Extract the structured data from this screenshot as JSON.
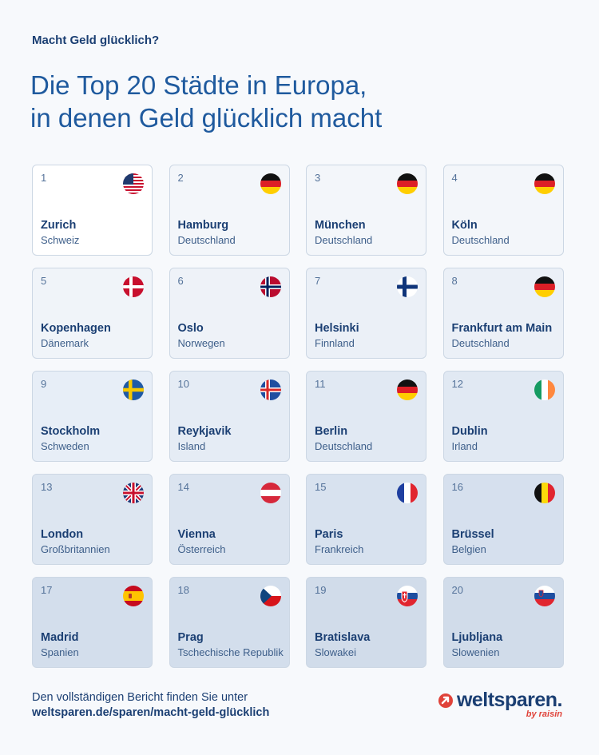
{
  "header": {
    "kicker": "Macht Geld glücklich?",
    "title_line1": "Die Top 20 Städte in Europa,",
    "title_line2": "in denen Geld glücklich macht"
  },
  "cities": [
    {
      "rank": "1",
      "city": "Zurich",
      "country": "Schweiz",
      "flag": "us-flag-icon",
      "bg": "#ffffff"
    },
    {
      "rank": "2",
      "city": "Hamburg",
      "country": "Deutschland",
      "flag": "germany-flag-icon",
      "bg": "#f3f6fa"
    },
    {
      "rank": "3",
      "city": "München",
      "country": "Deutschland",
      "flag": "germany-flag-icon",
      "bg": "#f3f6fa"
    },
    {
      "rank": "4",
      "city": "Köln",
      "country": "Deutschland",
      "flag": "germany-flag-icon",
      "bg": "#f3f6fa"
    },
    {
      "rank": "5",
      "city": "Kopenhagen",
      "country": "Dänemark",
      "flag": "denmark-flag-icon",
      "bg": "#f0f4f9"
    },
    {
      "rank": "6",
      "city": "Oslo",
      "country": "Norwegen",
      "flag": "norway-flag-icon",
      "bg": "#eef2f8"
    },
    {
      "rank": "7",
      "city": "Helsinki",
      "country": "Finnland",
      "flag": "finland-flag-icon",
      "bg": "#ebf0f7"
    },
    {
      "rank": "8",
      "city": "Frankfurt am Main",
      "country": "Deutschland",
      "flag": "germany-flag-icon",
      "bg": "#ebf0f7"
    },
    {
      "rank": "9",
      "city": "Stockholm",
      "country": "Schweden",
      "flag": "sweden-flag-icon",
      "bg": "#e7eef7"
    },
    {
      "rank": "10",
      "city": "Reykjavik",
      "country": "Island",
      "flag": "iceland-flag-icon",
      "bg": "#e5ecf5"
    },
    {
      "rank": "11",
      "city": "Berlin",
      "country": "Deutschland",
      "flag": "germany-flag-icon",
      "bg": "#e1e9f3"
    },
    {
      "rank": "12",
      "city": "Dublin",
      "country": "Irland",
      "flag": "ireland-flag-icon",
      "bg": "#e1e9f3"
    },
    {
      "rank": "13",
      "city": "London",
      "country": "Großbritannien",
      "flag": "uk-flag-icon",
      "bg": "#dde6f1"
    },
    {
      "rank": "14",
      "city": "Vienna",
      "country": "Österreich",
      "flag": "austria-flag-icon",
      "bg": "#dbe4f0"
    },
    {
      "rank": "15",
      "city": "Paris",
      "country": "Frankreich",
      "flag": "france-flag-icon",
      "bg": "#d8e2ef"
    },
    {
      "rank": "16",
      "city": "Brüssel",
      "country": "Belgien",
      "flag": "belgium-flag-icon",
      "bg": "#d6e0ee"
    },
    {
      "rank": "17",
      "city": "Madrid",
      "country": "Spanien",
      "flag": "spain-flag-icon",
      "bg": "#d3deec"
    },
    {
      "rank": "18",
      "city": "Prag",
      "country": "Tschechische Republik",
      "flag": "czech-flag-icon",
      "bg": "#d3deec"
    },
    {
      "rank": "19",
      "city": "Bratislava",
      "country": "Slowakei",
      "flag": "slovakia-flag-icon",
      "bg": "#d1dcea"
    },
    {
      "rank": "20",
      "city": "Ljubljana",
      "country": "Slowenien",
      "flag": "slovenia-flag-icon",
      "bg": "#d1dcea"
    }
  ],
  "footer": {
    "text": "Den vollständigen Bericht finden Sie unter",
    "url": "weltsparen.de/sparen/macht-geld-glücklich"
  },
  "logo": {
    "name": "weltsparen.",
    "tagline": "by raisin",
    "accent": "#e0433a"
  }
}
